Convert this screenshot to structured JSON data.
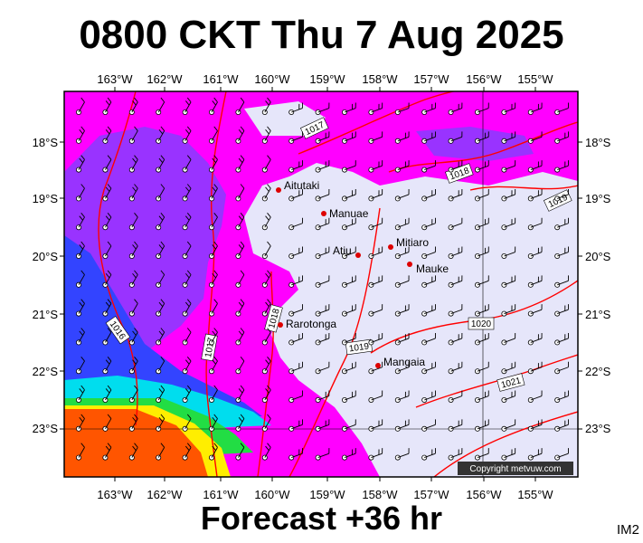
{
  "header": {
    "title": "0800 CKT Thu 7 Aug 2025"
  },
  "footer": {
    "forecast": "Forecast +36 hr",
    "tag": "IM2"
  },
  "credit": "Copyright metvuw.com",
  "map": {
    "lon_labels": [
      "163°W",
      "162°W",
      "161°W",
      "160°W",
      "159°W",
      "158°W",
      "157°W",
      "156°W",
      "155°W"
    ],
    "lat_labels": [
      "18°S",
      "19°S",
      "20°S",
      "21°S",
      "22°S",
      "23°S"
    ],
    "places": [
      {
        "name": "Aitutaki"
      },
      {
        "name": "Manuae"
      },
      {
        "name": "Atiu"
      },
      {
        "name": "Mitiaro"
      },
      {
        "name": "Mauke"
      },
      {
        "name": "Rarotonga"
      },
      {
        "name": "Mangaia"
      }
    ],
    "isobars": [
      "1016",
      "1017",
      "1018",
      "1019",
      "1020",
      "1021"
    ]
  },
  "colors": {
    "background": "#e6e6fa",
    "magenta": "#ff00ff",
    "purple": "#9933ff",
    "isobar": "#ff0000",
    "place_dot": "#dd0000"
  }
}
